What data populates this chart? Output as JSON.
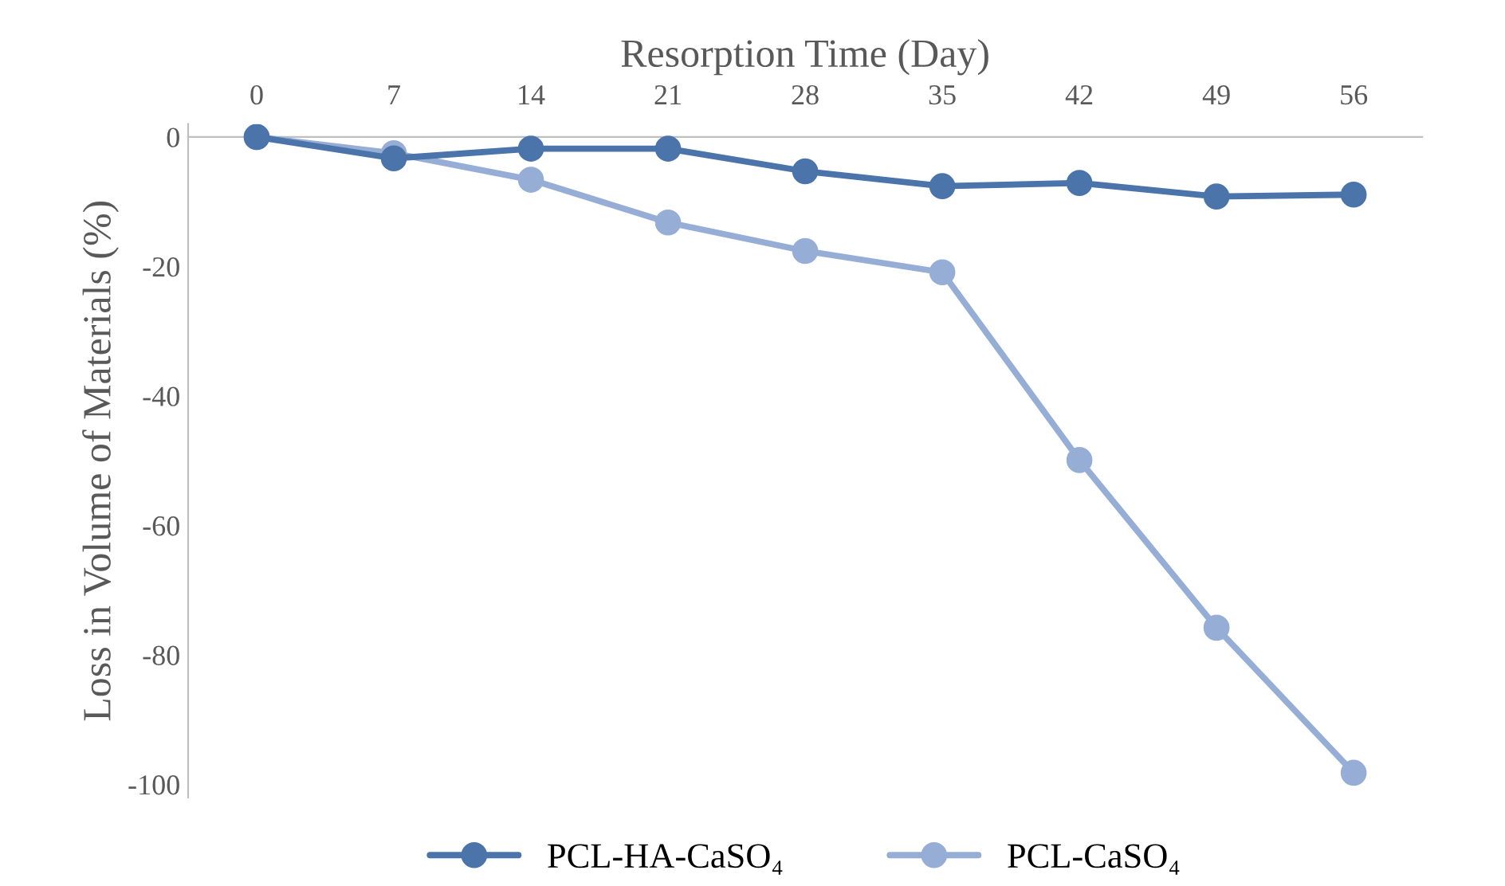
{
  "chart_data": {
    "type": "line",
    "xlabel": "Resorption Time (Day)",
    "ylabel": "Loss in Volume of Materials (%)",
    "x": [
      0,
      7,
      14,
      21,
      28,
      35,
      42,
      49,
      56
    ],
    "xlim": [
      -3.5,
      59.5
    ],
    "xticks": [
      0,
      7,
      14,
      21,
      28,
      35,
      42,
      49,
      56
    ],
    "ylim": [
      -102,
      2
    ],
    "yticks": [
      0,
      -20,
      -40,
      -60,
      -80,
      -100
    ],
    "series": [
      {
        "name": "PCL-HA-CaSO₄",
        "color": "#4a74aa",
        "values": [
          0,
          -3.3,
          -1.8,
          -1.8,
          -5.3,
          -7.6,
          -7.1,
          -9.2,
          -8.9
        ]
      },
      {
        "name": "PCL-CaSO₄",
        "color": "#96aed6",
        "values": [
          0,
          -2.5,
          -6.6,
          -13.2,
          -17.6,
          -20.9,
          -49.9,
          -75.8,
          -98.2
        ]
      }
    ],
    "marker": "circle",
    "line_style": "solid",
    "grid": false,
    "legend": "bottom"
  }
}
